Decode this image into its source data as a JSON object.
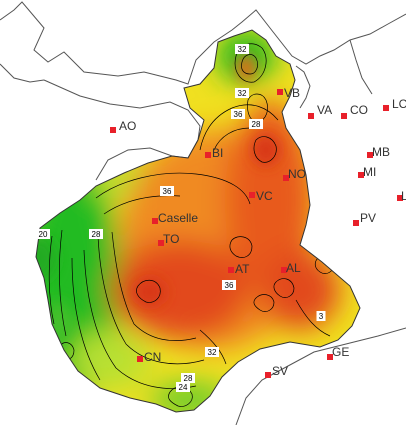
{
  "map": {
    "colors": {
      "background": "#ffffff",
      "border_line": "#555555",
      "marker": "#e8202a",
      "scale_low": "#22bb22",
      "scale_mid": "#f0e020",
      "scale_high": "#e24a1a"
    },
    "cities": [
      {
        "id": "aosta",
        "label": "AO"
      },
      {
        "id": "varese",
        "label": "VA"
      },
      {
        "id": "como",
        "label": "CO"
      },
      {
        "id": "lecco",
        "label": "LC"
      },
      {
        "id": "verbania",
        "label": "VB"
      },
      {
        "id": "biella",
        "label": "BI"
      },
      {
        "id": "novara",
        "label": "NO"
      },
      {
        "id": "monza",
        "label": "MB"
      },
      {
        "id": "milano",
        "label": "MI"
      },
      {
        "id": "lodi",
        "label": "L"
      },
      {
        "id": "vercelli",
        "label": "VC"
      },
      {
        "id": "pavia",
        "label": "PV"
      },
      {
        "id": "caselle",
        "label": "Caselle"
      },
      {
        "id": "torino",
        "label": "TO"
      },
      {
        "id": "asti",
        "label": "AT"
      },
      {
        "id": "alessandria",
        "label": "AL"
      },
      {
        "id": "genova",
        "label": "GE"
      },
      {
        "id": "savona",
        "label": "SV"
      },
      {
        "id": "cuneo",
        "label": "CN"
      }
    ],
    "contour_labels": [
      {
        "id": "c32-north",
        "text": "32"
      },
      {
        "id": "c32-ossola",
        "text": "32"
      },
      {
        "id": "c36-ossola",
        "text": "36"
      },
      {
        "id": "c28-ossola",
        "text": "28"
      },
      {
        "id": "c36-canavese",
        "text": "36"
      },
      {
        "id": "c20-west",
        "text": "20"
      },
      {
        "id": "c28-west",
        "text": "28"
      },
      {
        "id": "c36-south",
        "text": "36"
      },
      {
        "id": "c32-southeast",
        "text": "3"
      },
      {
        "id": "c32-south",
        "text": "32"
      },
      {
        "id": "c28-south",
        "text": "28"
      },
      {
        "id": "c24-south",
        "text": "24"
      }
    ]
  }
}
